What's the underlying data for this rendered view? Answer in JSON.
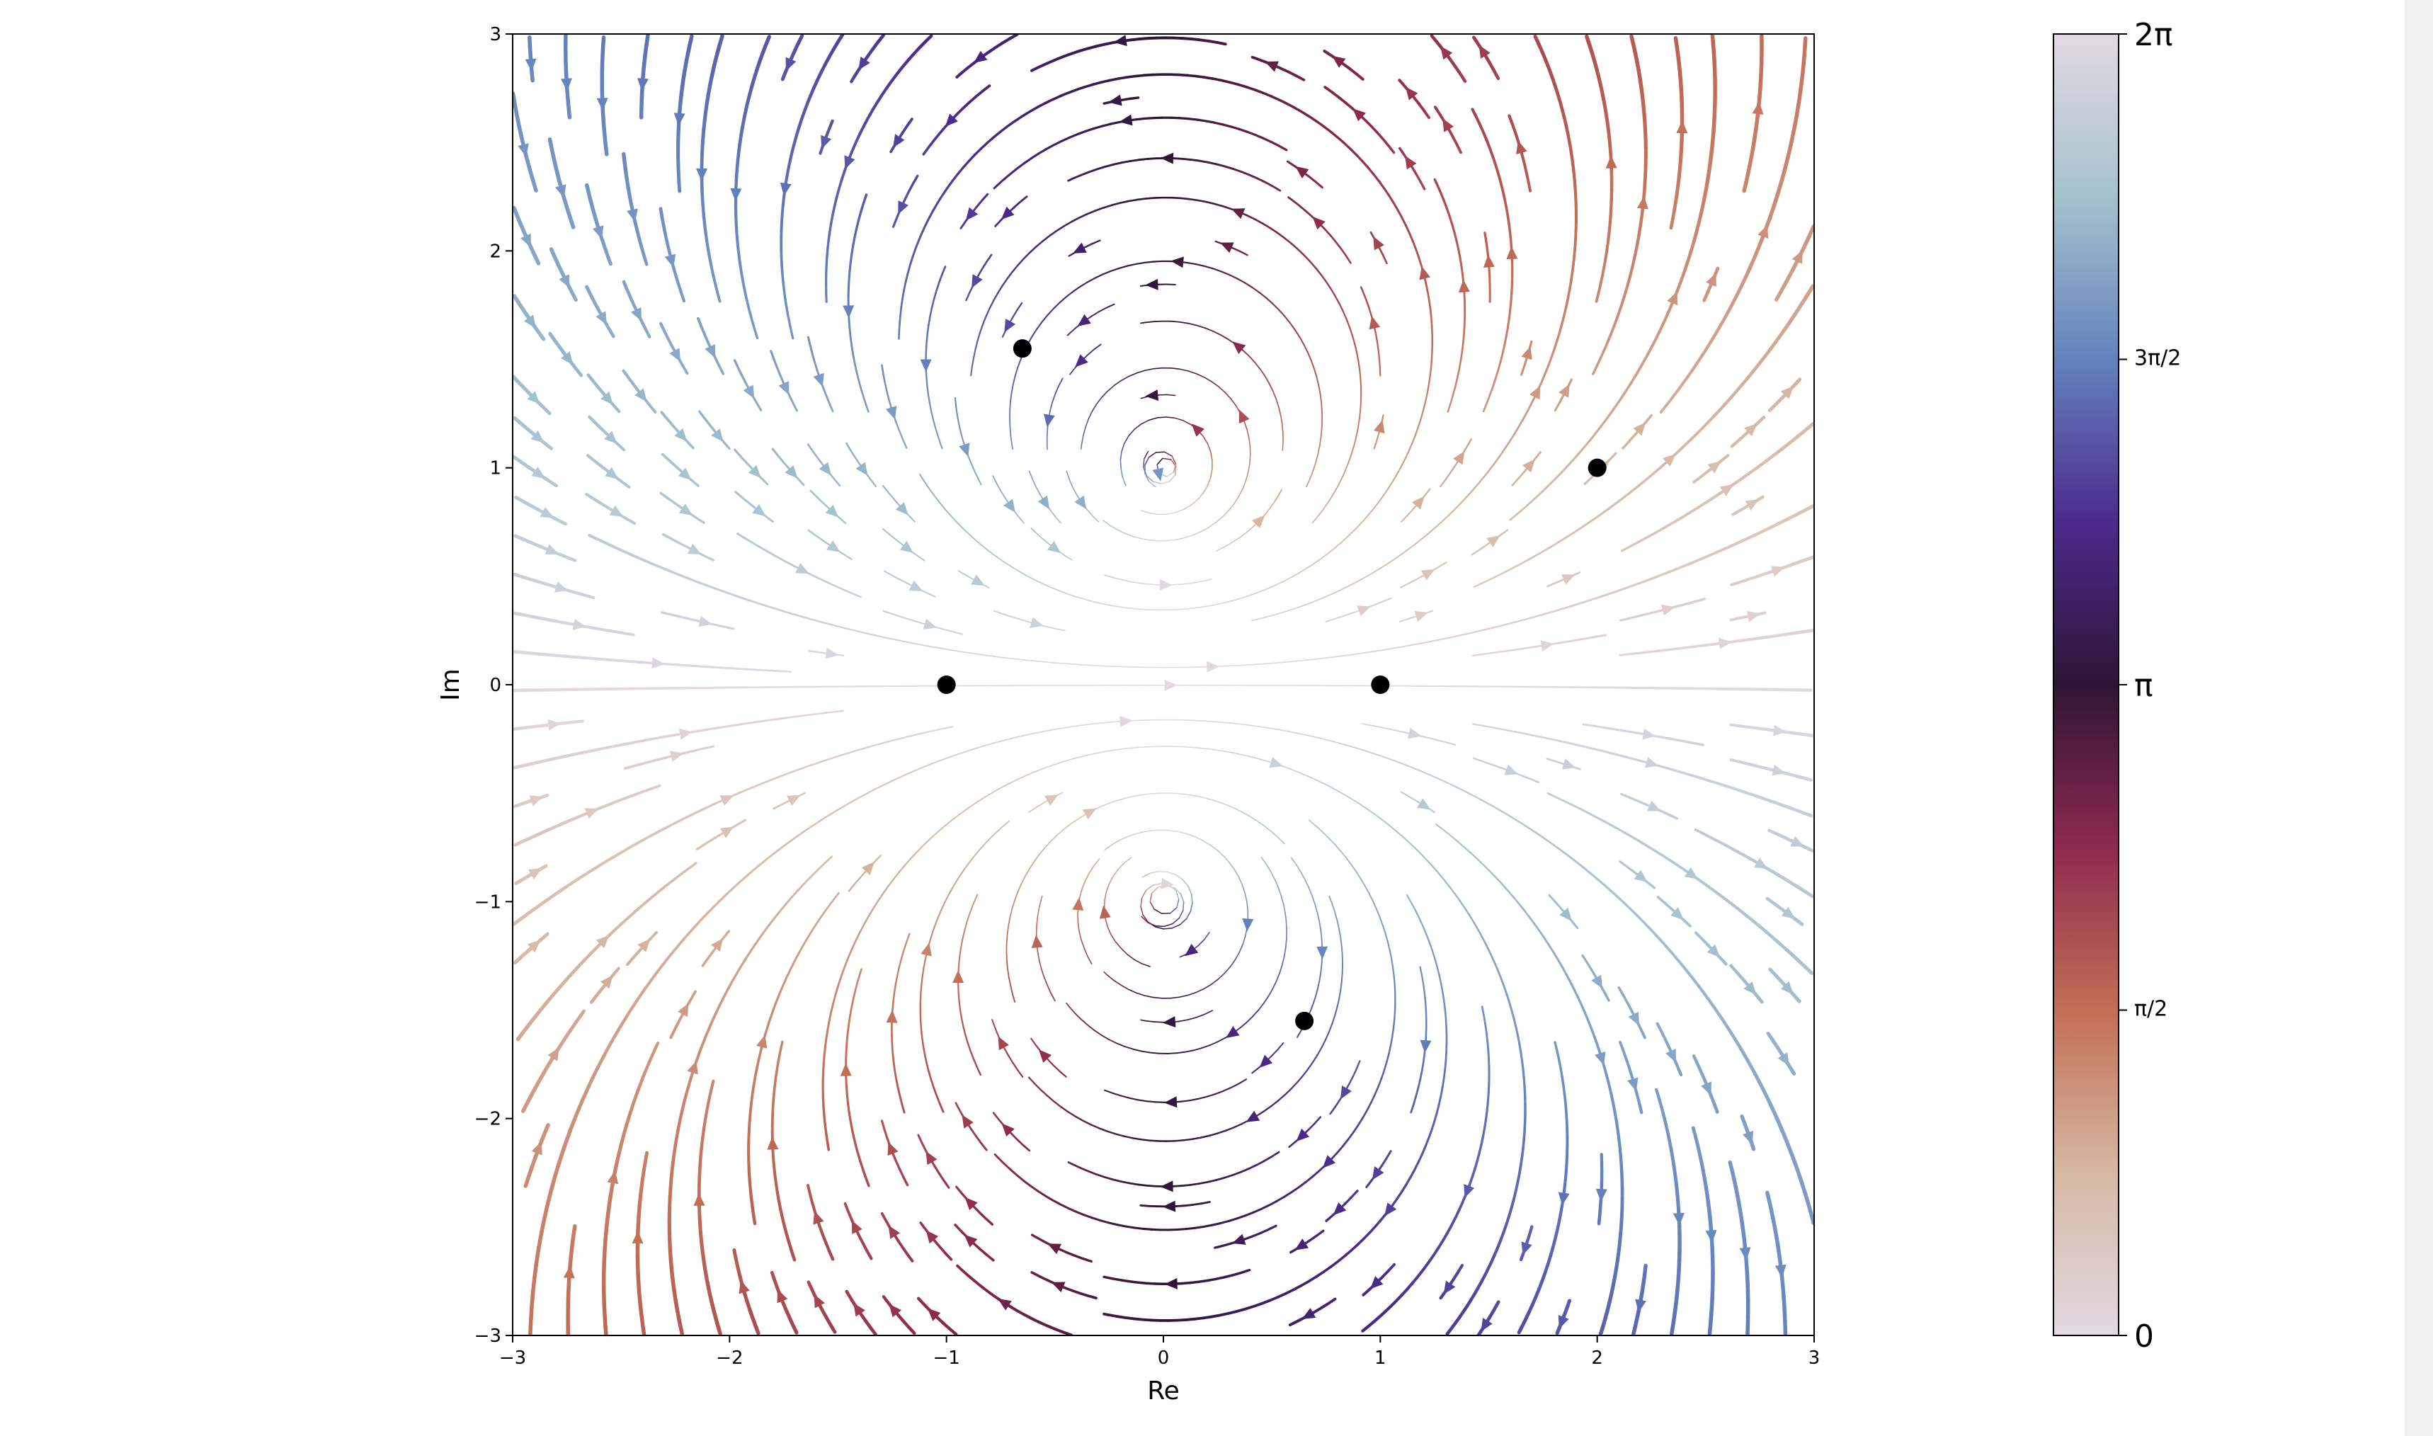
{
  "chart_data": {
    "type": "streamplot",
    "xlabel": "Re",
    "ylabel": "Im",
    "xlim": [
      -3,
      3
    ],
    "ylim": [
      -3,
      3
    ],
    "x_ticks": [
      -3,
      -2,
      -1,
      0,
      1,
      2,
      3
    ],
    "y_ticks": [
      -3,
      -2,
      -1,
      0,
      1,
      2,
      3
    ],
    "x_tick_labels": [
      "−3",
      "−2",
      "−1",
      "0",
      "1",
      "2",
      "3"
    ],
    "y_tick_labels": [
      "−3",
      "−2",
      "−1",
      "0",
      "1",
      "2",
      "3"
    ],
    "points": [
      {
        "x": -0.65,
        "y": 1.55
      },
      {
        "x": -1.0,
        "y": 0.0
      },
      {
        "x": 1.0,
        "y": 0.0
      },
      {
        "x": 2.0,
        "y": 1.0
      },
      {
        "x": 0.65,
        "y": -1.55
      }
    ],
    "singular_points": [
      {
        "x": 0,
        "y": 1
      },
      {
        "x": 0,
        "y": -1
      }
    ],
    "colorbar": {
      "label_range": [
        0,
        6.2832
      ],
      "tick_labels": [
        "0",
        "π/2",
        "π",
        "3π/2",
        "2π"
      ],
      "tick_values": [
        0,
        1.5708,
        3.1416,
        4.7124,
        6.2832
      ],
      "colormap": "twilight_shifted",
      "colormap_stops": [
        "#e2d9e2",
        "#d6b8a2",
        "#c36e55",
        "#8e2a4f",
        "#2f1436",
        "#4c2a8c",
        "#6382be",
        "#a4c2cd",
        "#e2d9e2"
      ]
    },
    "point_color": "#000000"
  }
}
